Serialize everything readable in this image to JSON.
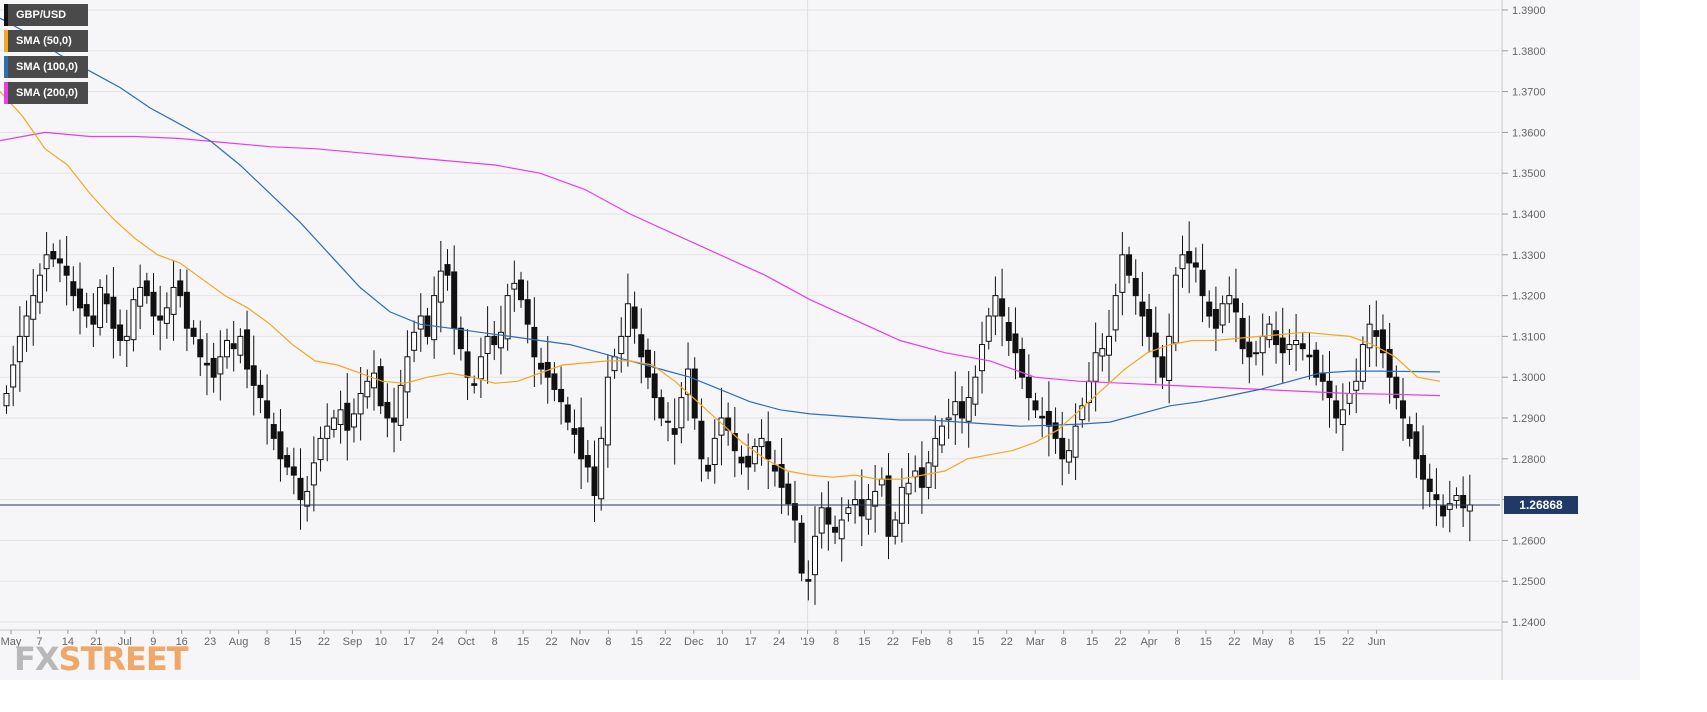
{
  "chart_data": {
    "type": "candlestick",
    "symbol": "GBP/USD",
    "timeframe": "daily",
    "ylim": [
      1.24,
      1.39
    ],
    "y_ticks": [
      "1.3900",
      "1.3800",
      "1.3700",
      "1.3600",
      "1.3500",
      "1.3400",
      "1.3300",
      "1.3200",
      "1.3100",
      "1.3000",
      "1.2900",
      "1.2800",
      "1.2700",
      "1.2600",
      "1.2500",
      "1.2400"
    ],
    "x_tick_labels": [
      "May",
      "7",
      "14",
      "21",
      "Jul",
      "9",
      "16",
      "23",
      "Aug",
      "8",
      "15",
      "22",
      "Sep",
      "10",
      "17",
      "24",
      "Oct",
      "8",
      "15",
      "22",
      "Nov",
      "8",
      "15",
      "22",
      "Dec",
      "10",
      "17",
      "24",
      "'19",
      "8",
      "15",
      "22",
      "Feb",
      "8",
      "15",
      "22",
      "Mar",
      "8",
      "15",
      "22",
      "Apr",
      "8",
      "15",
      "22",
      "May",
      "8",
      "15",
      "22",
      "Jun"
    ],
    "last_price": "1.26868",
    "legend": [
      {
        "label": "GBP/USD",
        "color": "#111111"
      },
      {
        "label": "SMA (50,0)",
        "color": "#f5a623"
      },
      {
        "label": "SMA (100,0)",
        "color": "#2f6db5"
      },
      {
        "label": "SMA (200,0)",
        "color": "#e83ee8"
      }
    ],
    "close_series": [
      1.296,
      1.303,
      1.31,
      1.315,
      1.32,
      1.325,
      1.33,
      1.329,
      1.328,
      1.325,
      1.32,
      1.317,
      1.315,
      1.313,
      1.322,
      1.318,
      1.312,
      1.309,
      1.31,
      1.319,
      1.322,
      1.32,
      1.315,
      1.314,
      1.317,
      1.322,
      1.32,
      1.312,
      1.31,
      1.305,
      1.303,
      1.3,
      1.305,
      1.309,
      1.307,
      1.31,
      1.302,
      1.298,
      1.295,
      1.29,
      1.285,
      1.28,
      1.278,
      1.276,
      1.27,
      1.272,
      1.279,
      1.285,
      1.288,
      1.29,
      1.292,
      1.287,
      1.291,
      1.296,
      1.299,
      1.301,
      1.293,
      1.29,
      1.289,
      1.298,
      1.305,
      1.311,
      1.315,
      1.31,
      1.32,
      1.326,
      1.325,
      1.312,
      1.307,
      1.3,
      1.298,
      1.305,
      1.31,
      1.308,
      1.311,
      1.32,
      1.323,
      1.319,
      1.313,
      1.305,
      1.302,
      1.3,
      1.297,
      1.294,
      1.289,
      1.286,
      1.28,
      1.278,
      1.271,
      1.285,
      1.3,
      1.305,
      1.31,
      1.318,
      1.312,
      1.305,
      1.3,
      1.295,
      1.29,
      1.289,
      1.286,
      1.295,
      1.302,
      1.29,
      1.28,
      1.277,
      1.285,
      1.29,
      1.287,
      1.282,
      1.279,
      1.278,
      1.283,
      1.285,
      1.28,
      1.277,
      1.273,
      1.269,
      1.265,
      1.252,
      1.25,
      1.261,
      1.268,
      1.264,
      1.262,
      1.265,
      1.268,
      1.27,
      1.266,
      1.27,
      1.272,
      1.275,
      1.261,
      1.265,
      1.273,
      1.274,
      1.277,
      1.273,
      1.279,
      1.285,
      1.288,
      1.29,
      1.294,
      1.29,
      1.295,
      1.3,
      1.308,
      1.315,
      1.32,
      1.315,
      1.309,
      1.306,
      1.3,
      1.295,
      1.292,
      1.29,
      1.288,
      1.285,
      1.28,
      1.282,
      1.288,
      1.293,
      1.299,
      1.306,
      1.307,
      1.31,
      1.32,
      1.33,
      1.325,
      1.32,
      1.315,
      1.31,
      1.305,
      1.3,
      1.31,
      1.325,
      1.33,
      1.328,
      1.327,
      1.32,
      1.315,
      1.312,
      1.318,
      1.32,
      1.316,
      1.307,
      1.305,
      1.306,
      1.31,
      1.313,
      1.308,
      1.306,
      1.308,
      1.309,
      1.307,
      1.305,
      1.3,
      1.299,
      1.295,
      1.29,
      1.292,
      1.296,
      1.299,
      1.308,
      1.313,
      1.31,
      1.306,
      1.3,
      1.295,
      1.29,
      1.285,
      1.28,
      1.275,
      1.272,
      1.27,
      1.266,
      1.269,
      1.271,
      1.268,
      1.2687
    ],
    "sma50": [
      [
        0.0,
        1.37
      ],
      [
        0.015,
        1.364
      ],
      [
        0.03,
        1.356
      ],
      [
        0.045,
        1.352
      ],
      [
        0.06,
        1.345
      ],
      [
        0.075,
        1.339
      ],
      [
        0.09,
        1.334
      ],
      [
        0.105,
        1.33
      ],
      [
        0.12,
        1.328
      ],
      [
        0.135,
        1.324
      ],
      [
        0.15,
        1.32
      ],
      [
        0.165,
        1.317
      ],
      [
        0.18,
        1.313
      ],
      [
        0.195,
        1.308
      ],
      [
        0.21,
        1.304
      ],
      [
        0.225,
        1.303
      ],
      [
        0.24,
        1.301
      ],
      [
        0.255,
        1.299
      ],
      [
        0.27,
        1.2985
      ],
      [
        0.285,
        1.3
      ],
      [
        0.3,
        1.301
      ],
      [
        0.315,
        1.3
      ],
      [
        0.33,
        1.2985
      ],
      [
        0.345,
        1.299
      ],
      [
        0.36,
        1.301
      ],
      [
        0.375,
        1.303
      ],
      [
        0.39,
        1.3035
      ],
      [
        0.405,
        1.304
      ],
      [
        0.42,
        1.304
      ],
      [
        0.435,
        1.303
      ],
      [
        0.45,
        1.299
      ],
      [
        0.465,
        1.294
      ],
      [
        0.48,
        1.289
      ],
      [
        0.495,
        1.284
      ],
      [
        0.51,
        1.28
      ],
      [
        0.525,
        1.277
      ],
      [
        0.54,
        1.276
      ],
      [
        0.555,
        1.2755
      ],
      [
        0.57,
        1.276
      ],
      [
        0.585,
        1.275
      ],
      [
        0.6,
        1.275
      ],
      [
        0.615,
        1.276
      ],
      [
        0.63,
        1.277
      ],
      [
        0.645,
        1.28
      ],
      [
        0.66,
        1.281
      ],
      [
        0.675,
        1.282
      ],
      [
        0.69,
        1.284
      ],
      [
        0.705,
        1.287
      ],
      [
        0.72,
        1.292
      ],
      [
        0.735,
        1.297
      ],
      [
        0.75,
        1.302
      ],
      [
        0.765,
        1.306
      ],
      [
        0.78,
        1.308
      ],
      [
        0.795,
        1.309
      ],
      [
        0.81,
        1.309
      ],
      [
        0.825,
        1.3095
      ],
      [
        0.84,
        1.31
      ],
      [
        0.855,
        1.3105
      ],
      [
        0.87,
        1.311
      ],
      [
        0.885,
        1.3105
      ],
      [
        0.9,
        1.31
      ],
      [
        0.915,
        1.308
      ],
      [
        0.93,
        1.305
      ],
      [
        0.945,
        1.3
      ],
      [
        0.96,
        1.299
      ]
    ],
    "sma100": [
      [
        0.0,
        1.388
      ],
      [
        0.02,
        1.384
      ],
      [
        0.04,
        1.379
      ],
      [
        0.06,
        1.375
      ],
      [
        0.08,
        1.371
      ],
      [
        0.1,
        1.366
      ],
      [
        0.12,
        1.362
      ],
      [
        0.14,
        1.358
      ],
      [
        0.16,
        1.352
      ],
      [
        0.18,
        1.345
      ],
      [
        0.2,
        1.338
      ],
      [
        0.22,
        1.33
      ],
      [
        0.24,
        1.322
      ],
      [
        0.26,
        1.316
      ],
      [
        0.28,
        1.313
      ],
      [
        0.3,
        1.312
      ],
      [
        0.32,
        1.311
      ],
      [
        0.34,
        1.31
      ],
      [
        0.36,
        1.309
      ],
      [
        0.38,
        1.308
      ],
      [
        0.4,
        1.306
      ],
      [
        0.42,
        1.304
      ],
      [
        0.44,
        1.302
      ],
      [
        0.46,
        1.3
      ],
      [
        0.48,
        1.297
      ],
      [
        0.5,
        1.294
      ],
      [
        0.52,
        1.292
      ],
      [
        0.54,
        1.291
      ],
      [
        0.56,
        1.2905
      ],
      [
        0.58,
        1.29
      ],
      [
        0.6,
        1.2895
      ],
      [
        0.62,
        1.2895
      ],
      [
        0.64,
        1.289
      ],
      [
        0.66,
        1.2885
      ],
      [
        0.68,
        1.288
      ],
      [
        0.7,
        1.2882
      ],
      [
        0.72,
        1.2885
      ],
      [
        0.74,
        1.289
      ],
      [
        0.76,
        1.291
      ],
      [
        0.78,
        1.293
      ],
      [
        0.8,
        1.294
      ],
      [
        0.82,
        1.2955
      ],
      [
        0.84,
        1.297
      ],
      [
        0.86,
        1.299
      ],
      [
        0.88,
        1.301
      ],
      [
        0.9,
        1.3015
      ],
      [
        0.92,
        1.3015
      ],
      [
        0.94,
        1.3014
      ],
      [
        0.96,
        1.3013
      ]
    ],
    "sma200": [
      [
        0.0,
        1.358
      ],
      [
        0.03,
        1.36
      ],
      [
        0.06,
        1.359
      ],
      [
        0.09,
        1.359
      ],
      [
        0.12,
        1.3585
      ],
      [
        0.15,
        1.3575
      ],
      [
        0.18,
        1.3565
      ],
      [
        0.21,
        1.356
      ],
      [
        0.24,
        1.355
      ],
      [
        0.27,
        1.354
      ],
      [
        0.3,
        1.353
      ],
      [
        0.33,
        1.352
      ],
      [
        0.36,
        1.35
      ],
      [
        0.39,
        1.346
      ],
      [
        0.42,
        1.34
      ],
      [
        0.45,
        1.335
      ],
      [
        0.48,
        1.33
      ],
      [
        0.51,
        1.325
      ],
      [
        0.54,
        1.319
      ],
      [
        0.57,
        1.314
      ],
      [
        0.6,
        1.309
      ],
      [
        0.63,
        1.306
      ],
      [
        0.66,
        1.304
      ],
      [
        0.69,
        1.3
      ],
      [
        0.72,
        1.299
      ],
      [
        0.75,
        1.2985
      ],
      [
        0.78,
        1.298
      ],
      [
        0.81,
        1.2975
      ],
      [
        0.84,
        1.297
      ],
      [
        0.87,
        1.2965
      ],
      [
        0.9,
        1.296
      ],
      [
        0.93,
        1.2958
      ],
      [
        0.96,
        1.2955
      ]
    ]
  },
  "logo": {
    "fx": "FX",
    "street": "STREET"
  }
}
